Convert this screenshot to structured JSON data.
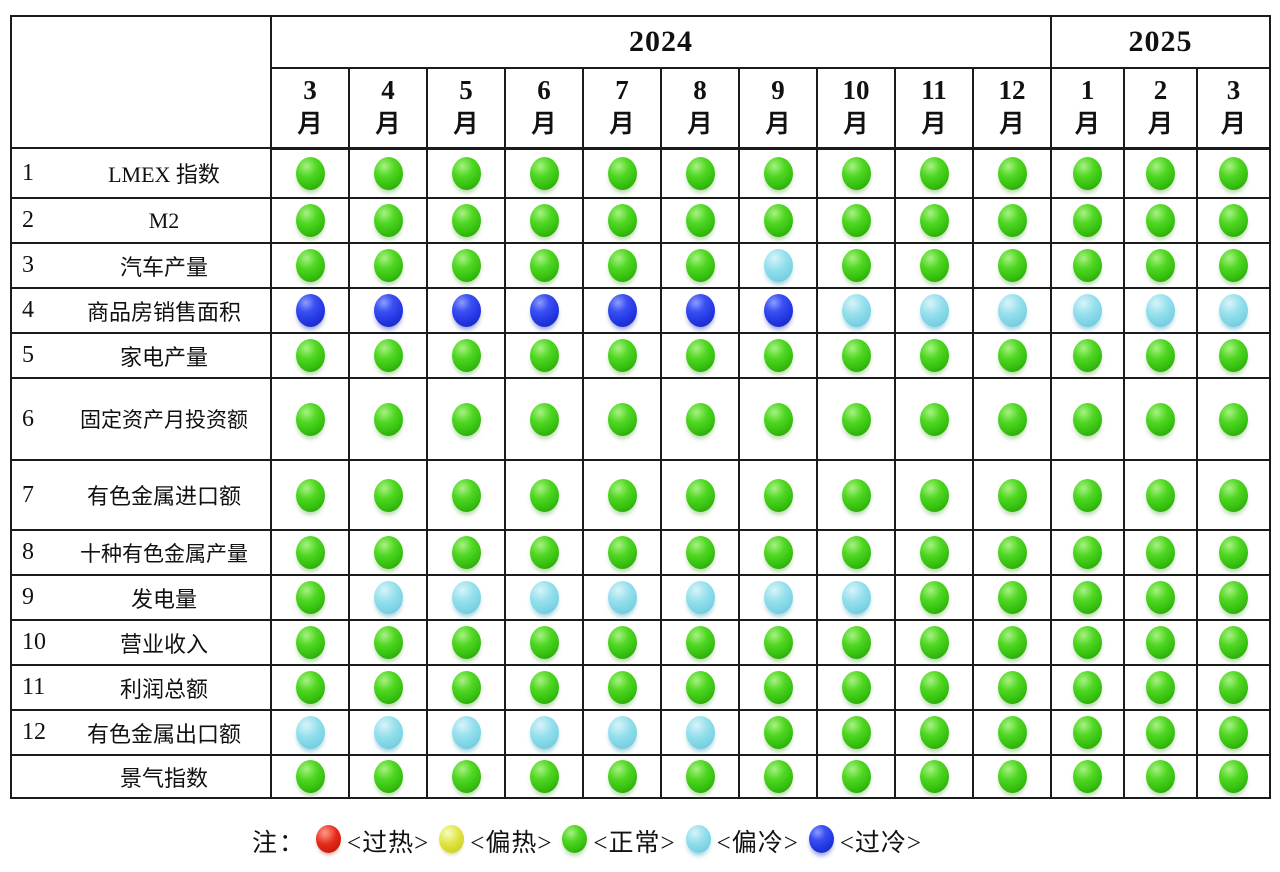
{
  "chart_data": {
    "type": "heatmap",
    "x_year_groups": [
      {
        "label": "2024",
        "span": 10
      },
      {
        "label": "2025",
        "span": 3
      }
    ],
    "x_months": [
      {
        "num": "3",
        "unit": "月"
      },
      {
        "num": "4",
        "unit": "月"
      },
      {
        "num": "5",
        "unit": "月"
      },
      {
        "num": "6",
        "unit": "月"
      },
      {
        "num": "7",
        "unit": "月"
      },
      {
        "num": "8",
        "unit": "月"
      },
      {
        "num": "9",
        "unit": "月"
      },
      {
        "num": "10",
        "unit": "月"
      },
      {
        "num": "11",
        "unit": "月"
      },
      {
        "num": "12",
        "unit": "月"
      },
      {
        "num": "1",
        "unit": "月"
      },
      {
        "num": "2",
        "unit": "月"
      },
      {
        "num": "3",
        "unit": "月"
      }
    ],
    "rows": [
      {
        "num": "1",
        "label": "LMEX 指数",
        "cells": [
          "green",
          "green",
          "green",
          "green",
          "green",
          "green",
          "green",
          "green",
          "green",
          "green",
          "green",
          "green",
          "green"
        ]
      },
      {
        "num": "2",
        "label": "M2",
        "cells": [
          "green",
          "green",
          "green",
          "green",
          "green",
          "green",
          "green",
          "green",
          "green",
          "green",
          "green",
          "green",
          "green"
        ]
      },
      {
        "num": "3",
        "label": "汽车产量",
        "cells": [
          "green",
          "green",
          "green",
          "green",
          "green",
          "green",
          "cyan",
          "green",
          "green",
          "green",
          "green",
          "green",
          "green"
        ]
      },
      {
        "num": "4",
        "label": "商品房销售面积",
        "cells": [
          "blue",
          "blue",
          "blue",
          "blue",
          "blue",
          "blue",
          "blue",
          "cyan",
          "cyan",
          "cyan",
          "cyan",
          "cyan",
          "cyan"
        ]
      },
      {
        "num": "5",
        "label": "家电产量",
        "cells": [
          "green",
          "green",
          "green",
          "green",
          "green",
          "green",
          "green",
          "green",
          "green",
          "green",
          "green",
          "green",
          "green"
        ]
      },
      {
        "num": "6",
        "label": "固定资产月投资额",
        "cells": [
          "green",
          "green",
          "green",
          "green",
          "green",
          "green",
          "green",
          "green",
          "green",
          "green",
          "green",
          "green",
          "green"
        ]
      },
      {
        "num": "7",
        "label": "有色金属进口额",
        "cells": [
          "green",
          "green",
          "green",
          "green",
          "green",
          "green",
          "green",
          "green",
          "green",
          "green",
          "green",
          "green",
          "green"
        ]
      },
      {
        "num": "8",
        "label": "十种有色金属产量",
        "cells": [
          "green",
          "green",
          "green",
          "green",
          "green",
          "green",
          "green",
          "green",
          "green",
          "green",
          "green",
          "green",
          "green"
        ]
      },
      {
        "num": "9",
        "label": "发电量",
        "cells": [
          "green",
          "cyan",
          "cyan",
          "cyan",
          "cyan",
          "cyan",
          "cyan",
          "cyan",
          "green",
          "green",
          "green",
          "green",
          "green"
        ]
      },
      {
        "num": "10",
        "label": "营业收入",
        "cells": [
          "green",
          "green",
          "green",
          "green",
          "green",
          "green",
          "green",
          "green",
          "green",
          "green",
          "green",
          "green",
          "green"
        ]
      },
      {
        "num": "11",
        "label": "利润总额",
        "cells": [
          "green",
          "green",
          "green",
          "green",
          "green",
          "green",
          "green",
          "green",
          "green",
          "green",
          "green",
          "green",
          "green"
        ]
      },
      {
        "num": "12",
        "label": "有色金属出口额",
        "cells": [
          "cyan",
          "cyan",
          "cyan",
          "cyan",
          "cyan",
          "cyan",
          "green",
          "green",
          "green",
          "green",
          "green",
          "green",
          "green"
        ]
      },
      {
        "num": "",
        "label": "景气指数",
        "cells": [
          "green",
          "green",
          "green",
          "green",
          "green",
          "green",
          "green",
          "green",
          "green",
          "green",
          "green",
          "green",
          "green"
        ]
      }
    ],
    "legend": {
      "prefix": "注：",
      "items": [
        {
          "status": "red",
          "label": "<过热>"
        },
        {
          "status": "yellow",
          "label": "<偏热>"
        },
        {
          "status": "green",
          "label": "<正常>"
        },
        {
          "status": "cyan",
          "label": "<偏冷>"
        },
        {
          "status": "blue",
          "label": "<过冷>"
        }
      ]
    },
    "status_colors": {
      "red": "#dd1f1f",
      "yellow": "#dfe440",
      "green": "#3ec916",
      "cyan": "#85d8e7",
      "blue": "#2437e6"
    }
  }
}
